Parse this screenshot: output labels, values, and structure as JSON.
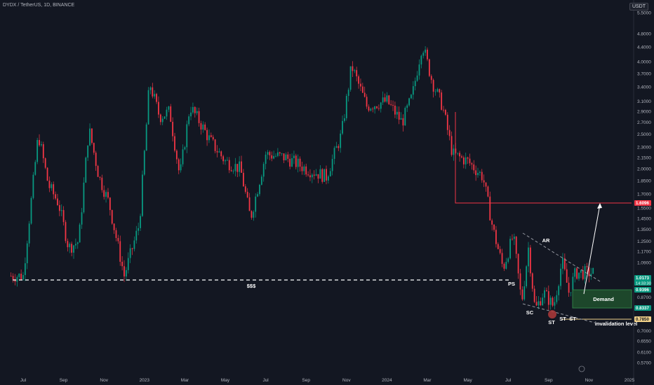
{
  "header": {
    "symbol_text": "DYDX / TetherUS, 1D, BINANCE",
    "currency_badge": "USDT"
  },
  "chart_data": {
    "type": "candlestick",
    "title": "DYDX / TetherUS, 1D, BINANCE",
    "y_scale": "log",
    "ylim": [
      0.545,
      5.6
    ],
    "x_ticks": [
      "Jul",
      "Sep",
      "Nov",
      "2023",
      "Mar",
      "May",
      "Jul",
      "Sep",
      "Nov",
      "2024",
      "Mar",
      "May",
      "Jul",
      "Sep",
      "Nov",
      "2025"
    ],
    "y_ticks": [
      "5.5000",
      "4.8000",
      "4.4000",
      "4.0000",
      "3.7000",
      "3.4000",
      "3.1000",
      "2.9000",
      "2.7000",
      "2.5000",
      "2.3000",
      "2.1500",
      "2.0000",
      "1.8500",
      "1.7000",
      "1.5500",
      "1.4500",
      "1.3500",
      "1.2500",
      "1.1700",
      "1.0900",
      "0.8700",
      "0.8100",
      "0.7500",
      "0.7000",
      "0.6550",
      "0.6100",
      "0.5700"
    ],
    "price_labels": [
      {
        "text": "1.6096",
        "color": "#f23645"
      },
      {
        "text": "1.0173",
        "sub": "14:33:30",
        "color": "#089981"
      },
      {
        "text": "0.9396",
        "color": "#089981"
      },
      {
        "text": "0.8337",
        "color": "#089981"
      },
      {
        "text": "0.7850",
        "color": "#f2d28a"
      }
    ],
    "approx_price_path": [
      [
        "Jul 2022",
        1.0
      ],
      [
        "Aug 2022",
        2.5
      ],
      [
        "Aug 2022",
        1.8
      ],
      [
        "Sep 2022",
        1.6
      ],
      [
        "Sep 2022",
        1.2
      ],
      [
        "Oct 2022",
        1.25
      ],
      [
        "Oct 2022",
        2.6
      ],
      [
        "Nov 2022",
        1.9
      ],
      [
        "Nov 2022",
        1.6
      ],
      [
        "Dec 2022",
        1.0
      ],
      [
        "Jan 2023",
        1.4
      ],
      [
        "Jan 2023",
        3.5
      ],
      [
        "Feb 2023",
        2.8
      ],
      [
        "Feb 2023",
        2.9
      ],
      [
        "Mar 2023",
        1.9
      ],
      [
        "Mar 2023",
        3.0
      ],
      [
        "Apr 2023",
        2.7
      ],
      [
        "Apr 2023",
        2.4
      ],
      [
        "May 2023",
        2.1
      ],
      [
        "Jun 2023",
        2.0
      ],
      [
        "Jun 2023",
        1.45
      ],
      [
        "Jul 2023",
        2.2
      ],
      [
        "Aug 2023",
        2.15
      ],
      [
        "Sep 2023",
        2.0
      ],
      [
        "Oct 2023",
        1.9
      ],
      [
        "Nov 2023",
        2.5
      ],
      [
        "Nov 2023",
        3.9
      ],
      [
        "Dec 2023",
        3.0
      ],
      [
        "Jan 2024",
        3.1
      ],
      [
        "Feb 2024",
        2.7
      ],
      [
        "Feb 2024",
        3.2
      ],
      [
        "Mar 2024",
        4.5
      ],
      [
        "Mar 2024",
        3.5
      ],
      [
        "Apr 2024",
        3.0
      ],
      [
        "Apr 2024",
        2.2
      ],
      [
        "May 2024",
        2.1
      ],
      [
        "Jun 2024",
        1.9
      ],
      [
        "Jun 2024",
        1.35
      ],
      [
        "Jul 2024",
        1.05
      ],
      [
        "Jul 2024",
        1.3
      ],
      [
        "Aug 2024",
        0.84
      ],
      [
        "Aug 2024",
        1.2
      ],
      [
        "Aug 2024",
        0.8
      ],
      [
        "Sep 2024",
        0.9
      ],
      [
        "Sep 2024",
        0.82
      ],
      [
        "Oct 2024",
        1.1
      ],
      [
        "Oct 2024",
        0.9
      ],
      [
        "Oct 2024",
        1.02
      ]
    ]
  },
  "annotations": {
    "liquidity_label": "$$$",
    "ps_label": "PS",
    "sc_label": "SC",
    "ar_label": "AR",
    "st1_label": "ST",
    "st2_label": "ST",
    "st3_label": "ST",
    "demand_label": "Demand",
    "invalidation_label": "invalidation level"
  },
  "colors": {
    "background": "#131722",
    "bull": "#089981",
    "bear": "#f23645",
    "demand_zone": "#1f4d2c",
    "invalidation": "#f2d28a"
  }
}
